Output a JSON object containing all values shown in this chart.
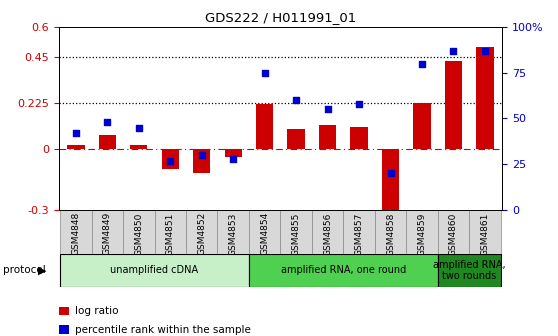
{
  "title": "GDS222 / H011991_01",
  "samples": [
    "GSM4848",
    "GSM4849",
    "GSM4850",
    "GSM4851",
    "GSM4852",
    "GSM4853",
    "GSM4854",
    "GSM4855",
    "GSM4856",
    "GSM4857",
    "GSM4858",
    "GSM4859",
    "GSM4860",
    "GSM4861"
  ],
  "log_ratio": [
    0.02,
    0.07,
    0.02,
    -0.1,
    -0.12,
    -0.04,
    0.22,
    0.1,
    0.12,
    0.11,
    -0.38,
    0.225,
    0.43,
    0.5
  ],
  "percentile_rank": [
    42,
    48,
    45,
    27,
    30,
    28,
    75,
    60,
    55,
    58,
    20,
    80,
    87,
    87
  ],
  "bar_color": "#cc0000",
  "dot_color": "#0000cc",
  "ylim_left": [
    -0.3,
    0.6
  ],
  "ylim_right": [
    0,
    100
  ],
  "yticks_left": [
    -0.3,
    0.0,
    0.225,
    0.45,
    0.6
  ],
  "yticks_right": [
    0,
    25,
    50,
    75,
    100
  ],
  "ytick_labels_left": [
    "-0.3",
    "0",
    "0.225",
    "0.45",
    "0.6"
  ],
  "ytick_labels_right": [
    "0",
    "25",
    "50",
    "75",
    "100%"
  ],
  "hlines": [
    0.225,
    0.45
  ],
  "zero_line": 0.0,
  "protocols": [
    {
      "label": "unamplified cDNA",
      "start": 0,
      "end": 5,
      "color": "#c8f0c8"
    },
    {
      "label": "amplified RNA, one round",
      "start": 6,
      "end": 11,
      "color": "#50d050"
    },
    {
      "label": "amplified RNA,\ntwo rounds",
      "start": 12,
      "end": 13,
      "color": "#208820"
    }
  ],
  "legend_items": [
    {
      "label": "log ratio",
      "color": "#cc0000"
    },
    {
      "label": "percentile rank within the sample",
      "color": "#0000cc"
    }
  ],
  "tick_label_color_left": "#cc0000",
  "tick_label_color_right": "#0000cc",
  "protocol_label": "protocol"
}
